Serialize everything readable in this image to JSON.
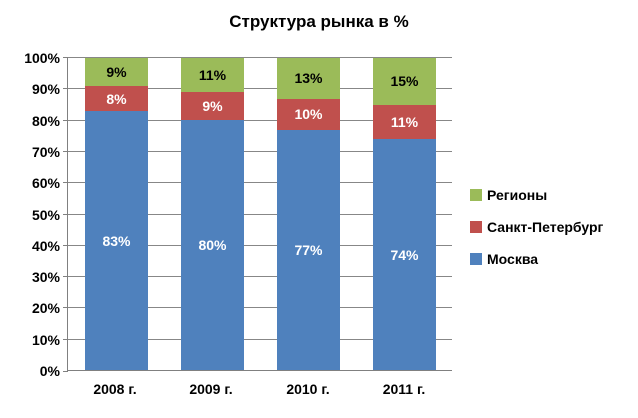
{
  "chart_data": {
    "type": "bar",
    "subtype": "stacked-100",
    "title": "Структура рынка в %",
    "categories": [
      "2008 г.",
      "2009 г.",
      "2010 г.",
      "2011 г."
    ],
    "series": [
      {
        "name": "Москва",
        "color": "#4F81BD",
        "label_color": "#FFFFFF",
        "values": [
          83,
          80,
          77,
          74
        ]
      },
      {
        "name": "Санкт-Петербург",
        "color": "#C0504D",
        "label_color": "#FFFFFF",
        "values": [
          8,
          9,
          10,
          11
        ]
      },
      {
        "name": "Регионы",
        "color": "#9BBB59",
        "label_color": "#000000",
        "values": [
          9,
          11,
          13,
          15
        ]
      }
    ],
    "data_label_format": "{value}%",
    "xlabel": "",
    "ylabel": "",
    "y_axis": {
      "min": 0,
      "max": 100,
      "step": 10,
      "tick_labels": [
        "0%",
        "10%",
        "20%",
        "30%",
        "40%",
        "50%",
        "60%",
        "70%",
        "80%",
        "90%",
        "100%"
      ]
    },
    "grid": true,
    "legend": {
      "position": "right",
      "items_top_to_bottom": [
        "Регионы",
        "Санкт-Петербург",
        "Москва"
      ]
    },
    "colors": {
      "background": "#FFFFFF",
      "gridline": "#878787",
      "axis": "#808080",
      "title_text": "#000000",
      "tick_text": "#000000"
    }
  }
}
